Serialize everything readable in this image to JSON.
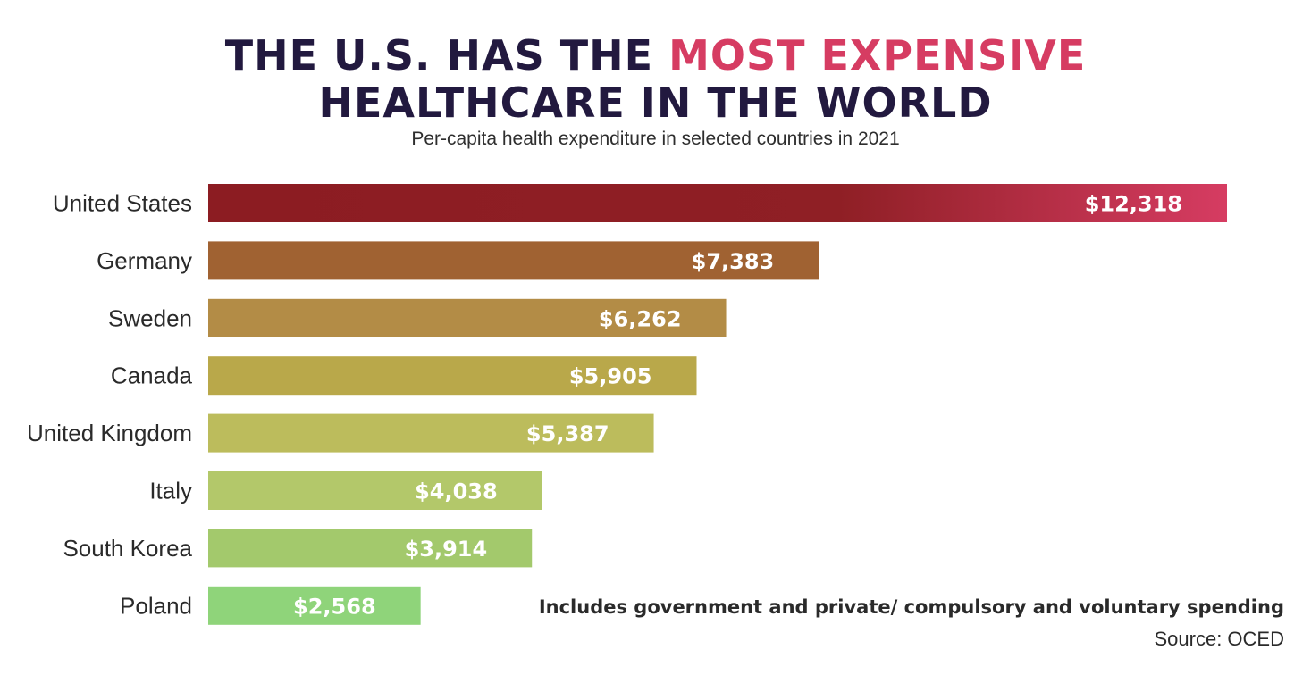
{
  "title": {
    "line1_prefix": "THE U.S. HAS THE ",
    "line1_accent": "MOST EXPENSIVE",
    "line2": "HEALTHCARE IN THE WORLD"
  },
  "subtitle": "Per-capita health expenditure in selected countries in 2021",
  "note": "Includes government and private/ compulsory and voluntary spending",
  "source": "Source: OCED",
  "colors": {
    "title": "#22193f",
    "accent": "#d63c62",
    "bar_us_start": "#8c1c22",
    "bar_us_end": "#d63c62"
  },
  "chart_data": {
    "type": "bar",
    "orientation": "horizontal",
    "title": "THE U.S. HAS THE MOST EXPENSIVE HEALTHCARE IN THE WORLD",
    "subtitle": "Per-capita health expenditure in selected countries in 2021",
    "categories": [
      "United States",
      "Germany",
      "Sweden",
      "Canada",
      "United Kingdom",
      "Italy",
      "South Korea",
      "Poland"
    ],
    "values": [
      12318,
      7383,
      6262,
      5905,
      5387,
      4038,
      3914,
      2568
    ],
    "labels": [
      "$12,318",
      "$7,383",
      "$6,262",
      "$5,905",
      "$5,387",
      "$4,038",
      "$3,914",
      "$2,568"
    ],
    "bar_colors": [
      "#8c1c22",
      "#a06232",
      "#b38c46",
      "#b9a84a",
      "#bcbc5c",
      "#b3c86a",
      "#a3c96c",
      "#8fd47a"
    ],
    "xlim": [
      0,
      12318
    ],
    "xlabel": "",
    "ylabel": "",
    "grid": false,
    "legend": "none"
  }
}
